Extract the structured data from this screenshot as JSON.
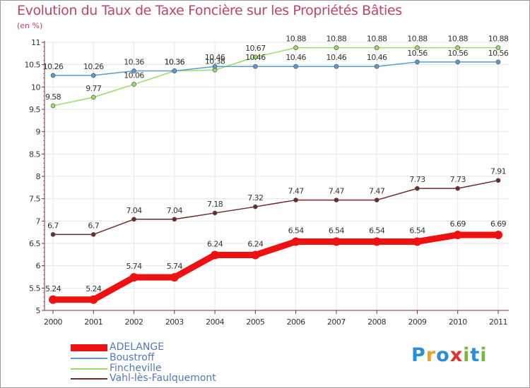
{
  "header": {
    "title": "Evolution du Taux de Taxe Foncière sur les Propriétés Bâties",
    "unit": "(en %)"
  },
  "brand": {
    "letters": [
      "P",
      "r",
      "o",
      "x",
      "i",
      "t",
      "i"
    ],
    "colors": [
      "#2a8fd6",
      "#f2a31b",
      "#2a8fd6",
      "#e0332b",
      "#7ab83b",
      "#2a8fd6",
      "#7ab83b"
    ]
  },
  "colors": {
    "title": "#c0446d",
    "axis": "#7f2d3f",
    "grid": "#e6e6e6",
    "legend_text": "#5577bb"
  },
  "chart_data": {
    "type": "line",
    "x": [
      "2000",
      "2001",
      "2002",
      "2003",
      "2004",
      "2005",
      "2006",
      "2007",
      "2008",
      "2009",
      "2010",
      "2011"
    ],
    "ylim": [
      5,
      11
    ],
    "yticks": [
      "5",
      "5.5",
      "6",
      "6.5",
      "7",
      "7.5",
      "8",
      "8.5",
      "9",
      "9.5",
      "10",
      "10.5",
      "11"
    ],
    "grid": true,
    "legend_position": "bottom-left",
    "series": [
      {
        "name": "ADELANGE",
        "color": "#ee1111",
        "values": [
          5.24,
          5.24,
          5.74,
          5.74,
          6.24,
          6.24,
          6.54,
          6.54,
          6.54,
          6.54,
          6.69,
          6.69
        ],
        "labels": [
          "5.24",
          "5.24",
          "5.74",
          "5.74",
          "6.24",
          "6.24",
          "6.54",
          "6.54",
          "6.54",
          "6.54",
          "6.69",
          "6.69"
        ]
      },
      {
        "name": "Boustroff",
        "color": "#5b9bd0",
        "values": [
          10.26,
          10.26,
          10.36,
          10.36,
          10.46,
          10.46,
          10.46,
          10.46,
          10.46,
          10.56,
          10.56,
          10.56
        ],
        "labels": [
          "10.26",
          "10.26",
          "10.36",
          "10.36",
          "10.46",
          "10.46",
          "10.46",
          "10.46",
          "10.46",
          "10.56",
          "10.56",
          "10.56"
        ]
      },
      {
        "name": "Fincheville",
        "color": "#99dd66",
        "values": [
          9.58,
          9.77,
          10.06,
          10.36,
          10.38,
          10.67,
          10.88,
          10.88,
          10.88,
          10.88,
          10.88,
          10.88
        ],
        "labels": [
          "9.58",
          "9.77",
          "10.06",
          "10.36",
          "10.38",
          "10.67",
          "10.88",
          "10.88",
          "10.88",
          "10.88",
          "10.88",
          "10.88"
        ]
      },
      {
        "name": "Vahl-lès-Faulquemont",
        "color": "#6b2b2b",
        "values": [
          6.7,
          6.7,
          7.04,
          7.04,
          7.18,
          7.32,
          7.47,
          7.47,
          7.47,
          7.73,
          7.73,
          7.91
        ],
        "labels": [
          "6.7",
          "6.7",
          "7.04",
          "7.04",
          "7.18",
          "7.32",
          "7.47",
          "7.47",
          "7.47",
          "7.73",
          "7.73",
          "7.91"
        ]
      }
    ]
  }
}
